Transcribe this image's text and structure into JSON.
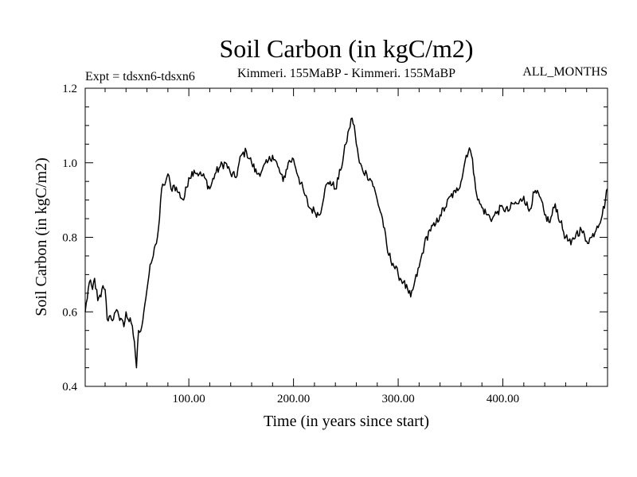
{
  "chart_data": {
    "type": "line",
    "title": "Soil Carbon (in kgC/m2)",
    "subtitle_left": "Expt = tdsxn6-tdsxn6",
    "subtitle_center": "Kimmeri. 155MaBP - Kimmeri. 155MaBP",
    "subtitle_right": "ALL_MONTHS",
    "xlabel": "Time (in years since start)",
    "ylabel": "Soil Carbon (in kgC/m2)",
    "xlim": [
      1,
      500
    ],
    "ylim": [
      0.4,
      1.2
    ],
    "xticks": [
      100,
      200,
      300,
      400
    ],
    "xtick_labels": [
      "100.00",
      "200.00",
      "300.00",
      "400.00"
    ],
    "yticks": [
      0.4,
      0.6,
      0.8,
      1.0,
      1.2
    ],
    "ytick_labels": [
      "0.4",
      "0.6",
      "0.8",
      "1.0",
      "1.2"
    ],
    "grid": false,
    "series": [
      {
        "name": "Soil Carbon",
        "color": "#000000",
        "x": [
          1,
          5,
          8,
          10,
          13,
          16,
          18,
          20,
          22,
          25,
          28,
          30,
          33,
          36,
          38,
          40,
          42,
          45,
          48,
          50,
          52,
          55,
          57,
          58,
          60,
          62,
          64,
          66,
          68,
          70,
          72,
          74,
          76,
          78,
          80,
          83,
          86,
          90,
          95,
          100,
          105,
          110,
          115,
          120,
          125,
          130,
          135,
          140,
          145,
          150,
          155,
          160,
          165,
          170,
          175,
          180,
          185,
          190,
          195,
          200,
          205,
          210,
          215,
          220,
          225,
          230,
          235,
          240,
          245,
          250,
          253,
          256,
          258,
          260,
          263,
          266,
          270,
          275,
          280,
          285,
          290,
          295,
          300,
          305,
          310,
          312,
          315,
          320,
          325,
          330,
          335,
          340,
          345,
          350,
          355,
          360,
          365,
          368,
          370,
          373,
          376,
          380,
          385,
          390,
          395,
          400,
          405,
          410,
          415,
          420,
          425,
          430,
          435,
          440,
          445,
          450,
          455,
          460,
          465,
          470,
          475,
          480,
          485,
          490,
          495,
          500
        ],
        "y": [
          0.6,
          0.68,
          0.66,
          0.69,
          0.63,
          0.64,
          0.67,
          0.66,
          0.58,
          0.59,
          0.58,
          0.6,
          0.59,
          0.58,
          0.56,
          0.6,
          0.58,
          0.57,
          0.52,
          0.45,
          0.55,
          0.56,
          0.6,
          0.62,
          0.66,
          0.7,
          0.73,
          0.75,
          0.78,
          0.8,
          0.85,
          0.93,
          0.94,
          0.95,
          0.97,
          0.93,
          0.94,
          0.92,
          0.9,
          0.96,
          0.98,
          0.97,
          0.96,
          0.93,
          0.97,
          0.99,
          1.0,
          0.97,
          0.96,
          1.02,
          1.03,
          1.0,
          0.97,
          0.98,
          1.0,
          1.02,
          0.99,
          0.95,
          1.0,
          1.01,
          0.96,
          0.92,
          0.88,
          0.87,
          0.86,
          0.93,
          0.95,
          0.93,
          0.98,
          1.05,
          1.09,
          1.12,
          1.1,
          1.05,
          1.0,
          0.98,
          0.97,
          0.95,
          0.9,
          0.85,
          0.76,
          0.73,
          0.7,
          0.68,
          0.65,
          0.64,
          0.67,
          0.72,
          0.78,
          0.82,
          0.83,
          0.86,
          0.88,
          0.91,
          0.92,
          0.95,
          1.02,
          1.04,
          1.02,
          0.96,
          0.9,
          0.88,
          0.86,
          0.85,
          0.87,
          0.88,
          0.87,
          0.89,
          0.89,
          0.91,
          0.87,
          0.92,
          0.91,
          0.86,
          0.84,
          0.89,
          0.84,
          0.8,
          0.78,
          0.81,
          0.82,
          0.79,
          0.8,
          0.83,
          0.86,
          0.93
        ]
      }
    ]
  }
}
